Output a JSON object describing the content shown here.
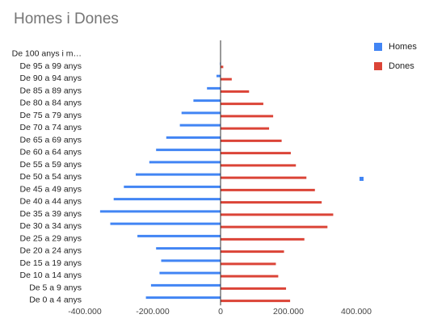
{
  "chart_data": {
    "type": "bar",
    "orientation": "horizontal",
    "title": "Homes i Dones",
    "categories": [
      "De 0 a 4 anys",
      "De 5 a 9 anys",
      "De 10 a 14 anys",
      "De 15 a 19 anys",
      "De 20 a 24 anys",
      "De 25 a 29 anys",
      "De 30 a 34 anys",
      "De 35 a 39 anys",
      "De 40 a 44 anys",
      "De 45 a 49 anys",
      "De 50 a 54 anys",
      "De 55 a 59 anys",
      "De 60 a 64 anys",
      "De 65 a 69 anys",
      "De 70 a 74 anys",
      "De 75 a 79 anys",
      "De 80 a 84 anys",
      "De 85 a 89 anys",
      "De 90 a 94 anys",
      "De 95 a 99 anys",
      "De 100 anys i m…"
    ],
    "series": [
      {
        "name": "Homes",
        "color": "#4285f4",
        "values": [
          -220000,
          -205000,
          -180000,
          -175000,
          -190000,
          -245000,
          -325000,
          -355000,
          -315000,
          -285000,
          -250000,
          -210000,
          -190000,
          -160000,
          -120000,
          -115000,
          -80000,
          -40000,
          -12000,
          -2000,
          -500
        ]
      },
      {
        "name": "Dones",
        "color": "#db4437",
        "values": [
          205000,
          193000,
          170000,
          163000,
          187000,
          247000,
          315000,
          332000,
          298000,
          278000,
          253000,
          222000,
          207000,
          180000,
          143000,
          155000,
          126000,
          84000,
          33000,
          8000,
          1000
        ]
      }
    ],
    "xlim": [
      -400000,
      450000
    ],
    "xticks": [
      -400000,
      -200000,
      0,
      200000,
      400000
    ],
    "xtick_labels": [
      "-400.000",
      "-200.000",
      "0",
      "200.000",
      "400.000"
    ],
    "grid": false,
    "legend_position": "right"
  }
}
